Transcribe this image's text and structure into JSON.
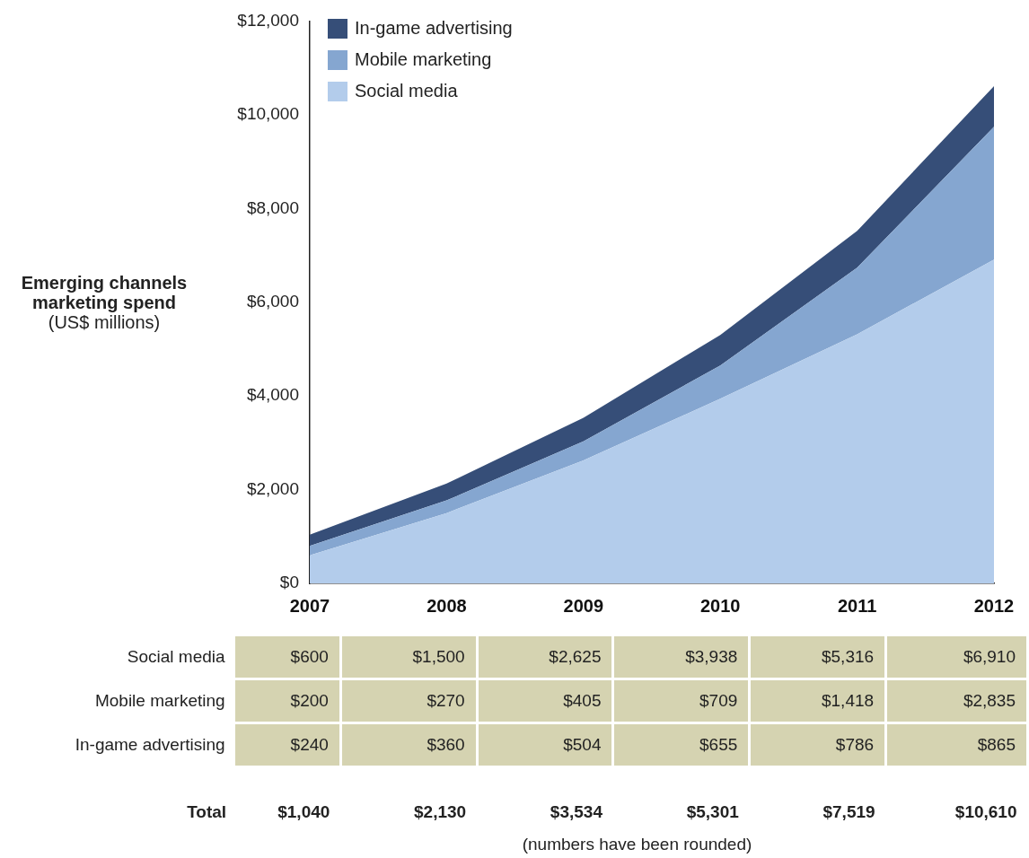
{
  "chart_data": {
    "type": "area",
    "stacked": true,
    "ylabel": "Emerging channels marketing spend (US$ millions)",
    "categories": [
      "2007",
      "2008",
      "2009",
      "2010",
      "2011",
      "2012"
    ],
    "series": [
      {
        "name": "Social media",
        "color": "#b3cceb",
        "values": [
          600,
          1500,
          2625,
          3938,
          5316,
          6910
        ],
        "value_labels": [
          "$600",
          "$1,500",
          "$2,625",
          "$3,938",
          "$5,316",
          "$6,910"
        ]
      },
      {
        "name": "Mobile marketing",
        "color": "#85a6d0",
        "values": [
          200,
          270,
          405,
          709,
          1418,
          2835
        ],
        "value_labels": [
          "$200",
          "$270",
          "$405",
          "$709",
          "$1,418",
          "$2,835"
        ]
      },
      {
        "name": "In-game advertising",
        "color": "#364e78",
        "values": [
          240,
          360,
          504,
          655,
          786,
          865
        ],
        "value_labels": [
          "$240",
          "$360",
          "$504",
          "$655",
          "$786",
          "$865"
        ]
      }
    ],
    "ylim": [
      0,
      12000
    ],
    "yticks": [
      {
        "value": 0,
        "label": "$0"
      },
      {
        "value": 2000,
        "label": "$2,000"
      },
      {
        "value": 4000,
        "label": "$4,000"
      },
      {
        "value": 6000,
        "label": "$6,000"
      },
      {
        "value": 8000,
        "label": "$8,000"
      },
      {
        "value": 10000,
        "label": "$10,000"
      },
      {
        "value": 12000,
        "label": "$12,000"
      }
    ],
    "grid": false,
    "legend": "top left",
    "annotations": [
      "Total",
      "$1,040",
      "$2,130",
      "$3,534",
      "$5,301",
      "$7,519",
      "$10,610",
      "(numbers have been rounded)"
    ]
  }
}
